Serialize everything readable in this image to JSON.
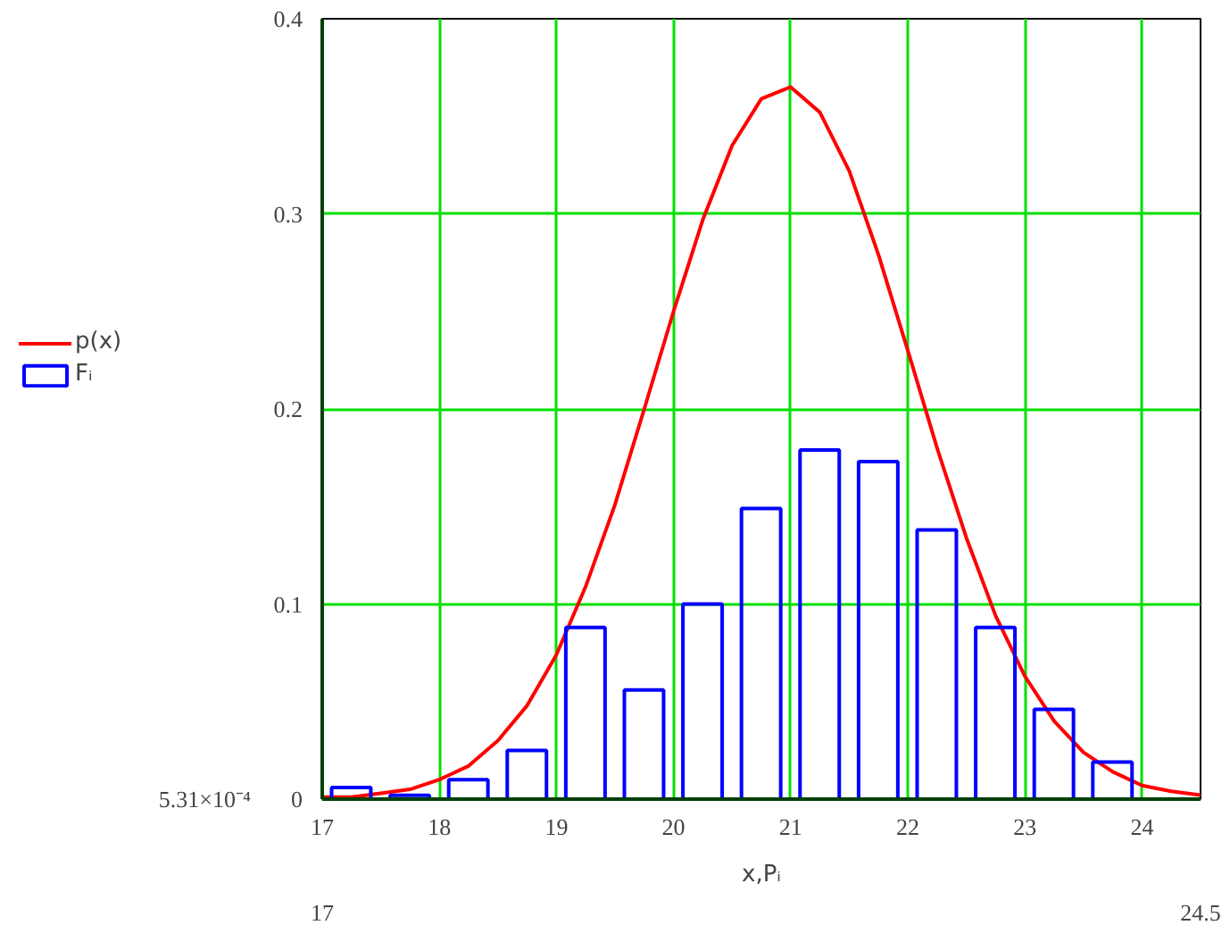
{
  "chart_data": {
    "type": "histogram",
    "xlabel": "x,Pᵢ",
    "xlim": [
      17,
      24.5
    ],
    "xticks": [
      17,
      18,
      19,
      20,
      21,
      22,
      23,
      24
    ],
    "ylim": [
      0,
      0.4
    ],
    "yticks": [
      {
        "value": 0,
        "label": "0"
      },
      {
        "value": 0.1,
        "label": "0.1"
      },
      {
        "value": 0.2,
        "label": "0.2"
      },
      {
        "value": 0.3,
        "label": "0.3"
      },
      {
        "value": 0.4,
        "label": "0.4"
      }
    ],
    "grid": true,
    "legend": "left",
    "annotations": [
      "17",
      "24.5",
      "5.31×10⁻⁴"
    ],
    "series": [
      {
        "name": "p(x)",
        "type": "line",
        "color": "#ff0000",
        "x": [
          17,
          17.25,
          17.5,
          17.75,
          18,
          18.25,
          18.5,
          18.75,
          19,
          19.25,
          19.5,
          19.75,
          20,
          20.25,
          20.5,
          20.75,
          21,
          21.25,
          21.5,
          21.75,
          22,
          22.25,
          22.5,
          22.75,
          23,
          23.25,
          23.5,
          23.75,
          24,
          24.25,
          24.5
        ],
        "values": [
          0.001,
          0.001,
          0.003,
          0.005,
          0.01,
          0.017,
          0.03,
          0.048,
          0.074,
          0.109,
          0.151,
          0.2,
          0.25,
          0.297,
          0.335,
          0.359,
          0.365,
          0.352,
          0.322,
          0.279,
          0.23,
          0.18,
          0.134,
          0.094,
          0.063,
          0.04,
          0.024,
          0.014,
          0.007,
          0.004,
          0.002
        ]
      },
      {
        "name": "Fᵢ",
        "color": "#0000ff",
        "bins": [
          17,
          17.5,
          18,
          18.5,
          19,
          19.5,
          20,
          20.5,
          21,
          21.5,
          22,
          22.5,
          23,
          23.5,
          24
        ],
        "values": [
          0.006,
          0.002,
          0.01,
          0.025,
          0.088,
          0.056,
          0.1,
          0.149,
          0.179,
          0.173,
          0.138,
          0.088,
          0.046,
          0.019
        ]
      }
    ]
  }
}
